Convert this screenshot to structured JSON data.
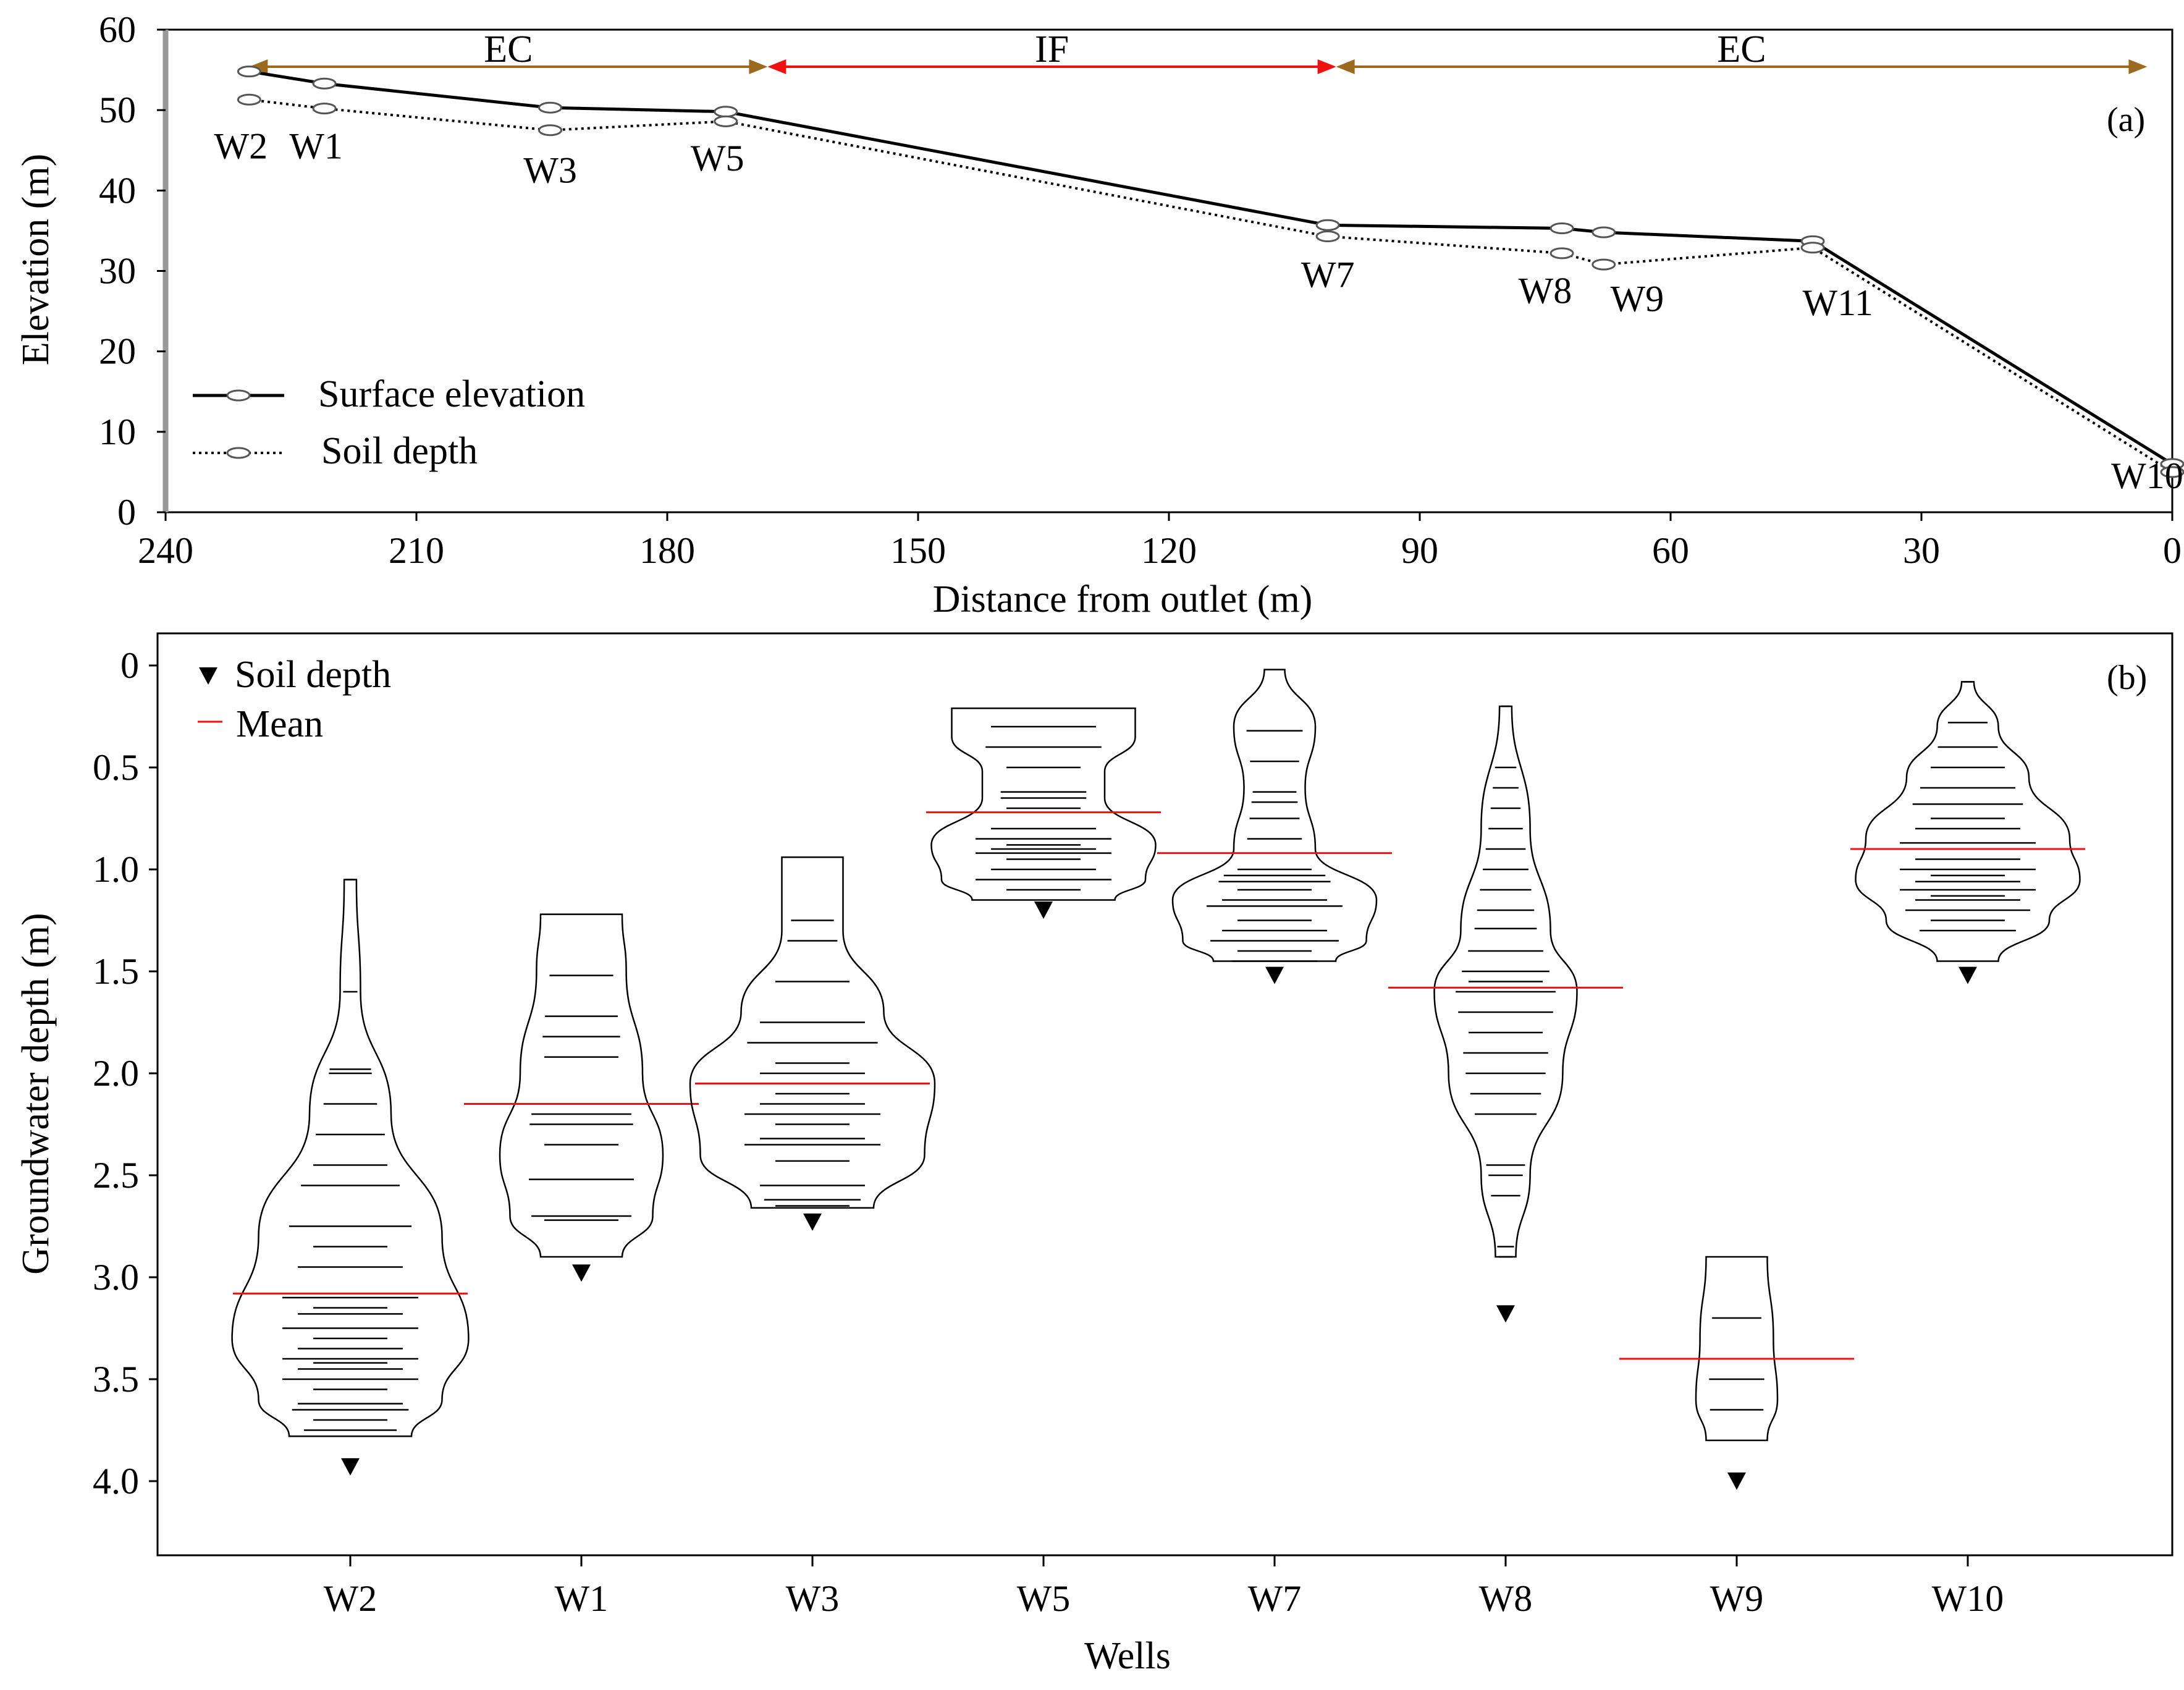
{
  "chart_data": [
    {
      "type": "line",
      "panel_label": "(a)",
      "xlabel": "Distance from outlet (m)",
      "ylabel": "Elevation (m)",
      "xlim": [
        240,
        0
      ],
      "ylim": [
        0,
        60
      ],
      "x_ticks": [
        "240",
        "210",
        "180",
        "150",
        "120",
        "90",
        "60",
        "30",
        "0"
      ],
      "x_tick_values": [
        240,
        210,
        180,
        150,
        120,
        90,
        60,
        30,
        0
      ],
      "y_ticks": [
        "0",
        "10",
        "20",
        "30",
        "40",
        "50",
        "60"
      ],
      "y_tick_values": [
        0,
        10,
        20,
        30,
        40,
        50,
        60
      ],
      "zones": [
        {
          "label": "EC",
          "from": 230,
          "to": 168,
          "color": "#9c6a1f"
        },
        {
          "label": "IF",
          "from": 168,
          "to": 100,
          "color": "#ee1111"
        },
        {
          "label": "EC",
          "from": 100,
          "to": 3,
          "color": "#9c6a1f"
        }
      ],
      "series": [
        {
          "name": "Surface elevation",
          "style": "solid",
          "x": [
            230,
            221,
            194,
            173,
            101,
            73,
            68,
            43,
            0
          ],
          "y": [
            54.8,
            53.3,
            50.3,
            49.8,
            35.7,
            35.3,
            34.8,
            33.7,
            6
          ]
        },
        {
          "name": "Soil depth",
          "style": "dotted",
          "x": [
            230,
            221,
            194,
            173,
            101,
            73,
            68,
            43,
            0
          ],
          "y": [
            51.3,
            50.2,
            47.5,
            48.6,
            34.3,
            32.2,
            30.8,
            32.9,
            5
          ]
        }
      ],
      "well_labels": [
        {
          "name": "W2",
          "x": 231,
          "y": 44
        },
        {
          "name": "W1",
          "x": 222,
          "y": 44
        },
        {
          "name": "W3",
          "x": 194,
          "y": 41
        },
        {
          "name": "W5",
          "x": 174,
          "y": 42.5
        },
        {
          "name": "W7",
          "x": 101,
          "y": 28
        },
        {
          "name": "W8",
          "x": 75,
          "y": 26
        },
        {
          "name": "W9",
          "x": 64,
          "y": 25
        },
        {
          "name": "W11",
          "x": 40,
          "y": 24.5
        },
        {
          "name": "W10",
          "x": 3,
          "y": 3
        }
      ],
      "legend": [
        "Surface elevation",
        "Soil depth"
      ],
      "legend_position": "bottom-left"
    },
    {
      "type": "scatter",
      "panel_label": "(b)",
      "xlabel": "Wells",
      "ylabel": "Groundwater depth  (m)",
      "ylim": [
        0,
        4.4
      ],
      "y_inverted": true,
      "y_ticks": [
        "0",
        "0.5",
        "1.0",
        "1.5",
        "2.0",
        "2.5",
        "3.0",
        "3.5",
        "4.0"
      ],
      "y_tick_values": [
        0,
        0.5,
        1.0,
        1.5,
        2.0,
        2.5,
        3.0,
        3.5,
        4.0
      ],
      "categories": [
        "W2",
        "W1",
        "W3",
        "W5",
        "W7",
        "W8",
        "W9",
        "W10"
      ],
      "legend": [
        "Soil depth",
        "Mean"
      ],
      "legend_position": "top-left",
      "mean_color": "#ee1111",
      "wells": [
        {
          "name": "W2",
          "soil_depth": 3.93,
          "mean": 3.08,
          "observations": [
            1.05,
            1.6,
            1.98,
            2.0,
            2.15,
            2.3,
            2.45,
            2.55,
            2.75,
            2.85,
            2.95,
            3.1,
            3.15,
            3.18,
            3.25,
            3.3,
            3.35,
            3.4,
            3.42,
            3.45,
            3.5,
            3.55,
            3.62,
            3.65,
            3.7,
            3.75
          ],
          "violin": [
            [
              1.05,
              0.03
            ],
            [
              1.6,
              0.05
            ],
            [
              2.2,
              0.2
            ],
            [
              2.8,
              0.45
            ],
            [
              3.3,
              0.58
            ],
            [
              3.6,
              0.45
            ],
            [
              3.78,
              0.3
            ]
          ]
        },
        {
          "name": "W1",
          "soil_depth": 2.98,
          "mean": 2.15,
          "observations": [
            1.52,
            1.72,
            1.82,
            1.92,
            2.2,
            2.25,
            2.35,
            2.52,
            2.7,
            2.72
          ],
          "violin": [
            [
              1.22,
              0.2
            ],
            [
              1.5,
              0.22
            ],
            [
              2.0,
              0.3
            ],
            [
              2.4,
              0.4
            ],
            [
              2.7,
              0.35
            ],
            [
              2.9,
              0.2
            ]
          ]
        },
        {
          "name": "W3",
          "soil_depth": 2.73,
          "mean": 2.05,
          "observations": [
            0.94,
            1.25,
            1.35,
            1.55,
            1.75,
            1.85,
            1.95,
            2.0,
            2.05,
            2.1,
            2.15,
            2.2,
            2.25,
            2.32,
            2.35,
            2.43,
            2.55,
            2.62,
            2.65
          ],
          "violin": [
            [
              0.94,
              0.15
            ],
            [
              1.3,
              0.15
            ],
            [
              1.7,
              0.35
            ],
            [
              2.05,
              0.6
            ],
            [
              2.4,
              0.55
            ],
            [
              2.66,
              0.3
            ]
          ]
        },
        {
          "name": "W5",
          "soil_depth": 1.2,
          "mean": 0.72,
          "observations": [
            0.21,
            0.3,
            0.4,
            0.5,
            0.62,
            0.65,
            0.7,
            0.8,
            0.85,
            0.88,
            0.9,
            0.92,
            0.95,
            1.0,
            1.05,
            1.1
          ],
          "violin": [
            [
              0.21,
              0.45
            ],
            [
              0.35,
              0.45
            ],
            [
              0.52,
              0.3
            ],
            [
              0.65,
              0.3
            ],
            [
              0.88,
              0.55
            ],
            [
              1.05,
              0.5
            ],
            [
              1.15,
              0.35
            ]
          ]
        },
        {
          "name": "W7",
          "soil_depth": 1.52,
          "mean": 0.92,
          "observations": [
            0.32,
            0.47,
            0.62,
            0.67,
            0.75,
            0.85,
            1.0,
            1.03,
            1.06,
            1.1,
            1.15,
            1.18,
            1.25,
            1.3,
            1.35,
            1.4,
            1.45
          ],
          "violin": [
            [
              0.02,
              0.05
            ],
            [
              0.3,
              0.2
            ],
            [
              0.6,
              0.15
            ],
            [
              0.9,
              0.2
            ],
            [
              1.15,
              0.5
            ],
            [
              1.35,
              0.45
            ],
            [
              1.45,
              0.3
            ]
          ]
        },
        {
          "name": "W8",
          "soil_depth": 3.18,
          "mean": 1.58,
          "observations": [
            0.2,
            0.5,
            0.6,
            0.7,
            0.8,
            0.9,
            1.0,
            1.1,
            1.2,
            1.29,
            1.4,
            1.5,
            1.55,
            1.6,
            1.7,
            1.8,
            1.9,
            2.0,
            2.1,
            2.2,
            2.45,
            2.5,
            2.6,
            2.85,
            2.9
          ],
          "violin": [
            [
              0.2,
              0.03
            ],
            [
              0.8,
              0.12
            ],
            [
              1.3,
              0.22
            ],
            [
              1.6,
              0.35
            ],
            [
              2.0,
              0.28
            ],
            [
              2.5,
              0.12
            ],
            [
              2.9,
              0.05
            ]
          ]
        },
        {
          "name": "W9",
          "soil_depth": 4.0,
          "mean": 3.4,
          "observations": [
            3.2,
            3.5,
            3.65
          ],
          "violin": [
            [
              2.9,
              0.15
            ],
            [
              3.3,
              0.18
            ],
            [
              3.6,
              0.2
            ],
            [
              3.8,
              0.15
            ]
          ]
        },
        {
          "name": "W10",
          "soil_depth": 1.52,
          "mean": 0.9,
          "observations": [
            0.08,
            0.28,
            0.4,
            0.5,
            0.6,
            0.68,
            0.75,
            0.8,
            0.87,
            0.9,
            0.95,
            1.0,
            1.03,
            1.06,
            1.1,
            1.13,
            1.15,
            1.2,
            1.25,
            1.3
          ],
          "violin": [
            [
              0.08,
              0.03
            ],
            [
              0.3,
              0.15
            ],
            [
              0.55,
              0.3
            ],
            [
              0.85,
              0.5
            ],
            [
              1.05,
              0.55
            ],
            [
              1.25,
              0.4
            ],
            [
              1.45,
              0.15
            ]
          ]
        }
      ]
    }
  ]
}
